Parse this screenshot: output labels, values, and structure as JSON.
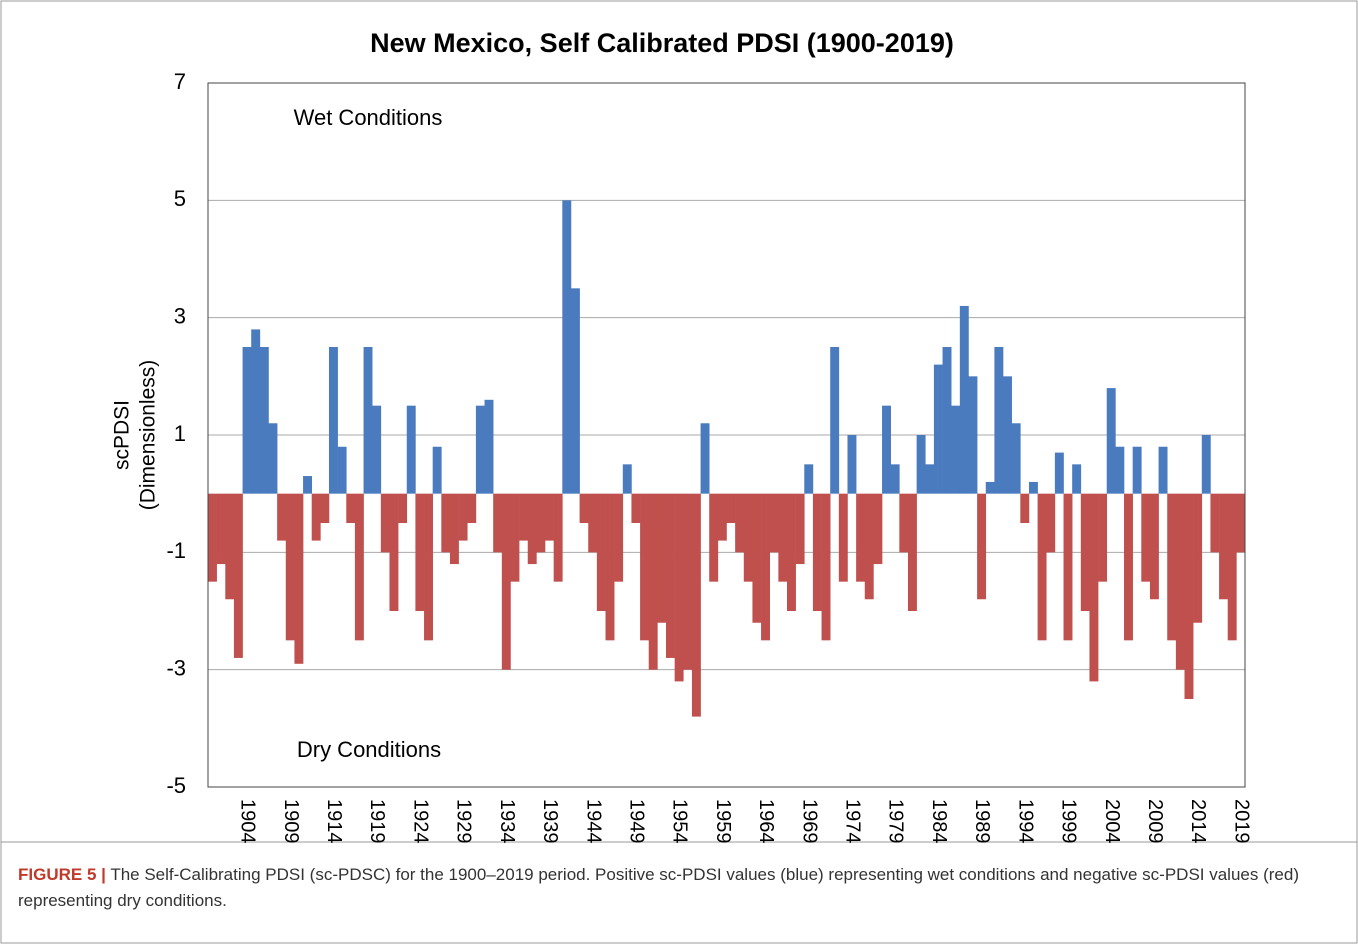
{
  "chart_data": {
    "type": "bar",
    "title": "New Mexico, Self Calibrated PDSI (1900-2019)",
    "ylabel": [
      "scPDSI",
      "(Dimensionless)"
    ],
    "annotations": [
      "Wet Conditions",
      "Dry Conditions"
    ],
    "x": [
      1900,
      1901,
      1902,
      1903,
      1904,
      1905,
      1906,
      1907,
      1908,
      1909,
      1910,
      1911,
      1912,
      1913,
      1914,
      1915,
      1916,
      1917,
      1918,
      1919,
      1920,
      1921,
      1922,
      1923,
      1924,
      1925,
      1926,
      1927,
      1928,
      1929,
      1930,
      1931,
      1932,
      1933,
      1934,
      1935,
      1936,
      1937,
      1938,
      1939,
      1940,
      1941,
      1942,
      1943,
      1944,
      1945,
      1946,
      1947,
      1948,
      1949,
      1950,
      1951,
      1952,
      1953,
      1954,
      1955,
      1956,
      1957,
      1958,
      1959,
      1960,
      1961,
      1962,
      1963,
      1964,
      1965,
      1966,
      1967,
      1968,
      1969,
      1970,
      1971,
      1972,
      1973,
      1974,
      1975,
      1976,
      1977,
      1978,
      1979,
      1980,
      1981,
      1982,
      1983,
      1984,
      1985,
      1986,
      1987,
      1988,
      1989,
      1990,
      1991,
      1992,
      1993,
      1994,
      1995,
      1996,
      1997,
      1998,
      1999,
      2000,
      2001,
      2002,
      2003,
      2004,
      2005,
      2006,
      2007,
      2008,
      2009,
      2010,
      2011,
      2012,
      2013,
      2014,
      2015,
      2016,
      2017,
      2018,
      2019
    ],
    "values": [
      -1.5,
      -1.2,
      -1.8,
      -2.8,
      2.5,
      2.8,
      2.5,
      1.2,
      -0.8,
      -2.5,
      -2.9,
      0.3,
      -0.8,
      -0.5,
      2.5,
      0.8,
      -0.5,
      -2.5,
      2.5,
      1.5,
      -1.0,
      -2.0,
      -0.5,
      1.5,
      -2.0,
      -2.5,
      0.8,
      -1.0,
      -1.2,
      -0.8,
      -0.5,
      1.5,
      1.6,
      -1.0,
      -3.0,
      -1.5,
      -0.8,
      -1.2,
      -1.0,
      -0.8,
      -1.5,
      5.0,
      3.5,
      -0.5,
      -1.0,
      -2.0,
      -2.5,
      -1.5,
      0.5,
      -0.5,
      -2.5,
      -3.0,
      -2.2,
      -2.8,
      -3.2,
      -3.0,
      -3.8,
      1.2,
      -1.5,
      -0.8,
      -0.5,
      -1.0,
      -1.5,
      -2.2,
      -2.5,
      -1.0,
      -1.5,
      -2.0,
      -1.2,
      0.5,
      -2.0,
      -2.5,
      2.5,
      -1.5,
      1.0,
      -1.5,
      -1.8,
      -1.2,
      1.5,
      0.5,
      -1.0,
      -2.0,
      1.0,
      0.5,
      2.2,
      2.5,
      1.5,
      3.2,
      2.0,
      -1.8,
      0.2,
      2.5,
      2.0,
      1.2,
      -0.5,
      0.2,
      -2.5,
      -1.0,
      0.7,
      -2.5,
      0.5,
      -2.0,
      -3.2,
      -1.5,
      1.8,
      0.8,
      -2.5,
      0.8,
      -1.5,
      -1.8,
      0.8,
      -2.5,
      -3.0,
      -3.5,
      -2.2,
      1.0,
      -1.0,
      -1.8,
      -2.5,
      -1.0
    ],
    "color_positive": "#4b7bbf",
    "color_negative": "#c0504d",
    "xlim": [
      1899.5,
      2019.5
    ],
    "xticks": [
      1904,
      1909,
      1914,
      1919,
      1924,
      1929,
      1934,
      1939,
      1944,
      1949,
      1954,
      1959,
      1964,
      1969,
      1974,
      1979,
      1984,
      1989,
      1994,
      1999,
      2004,
      2009,
      2014,
      2019
    ],
    "ylim": [
      -5,
      7
    ],
    "yticks": [
      7,
      5,
      3,
      1,
      -1,
      -3,
      -5
    ],
    "grid": true
  },
  "caption": {
    "label": "FIGURE 5 |",
    "text": "The Self-Calibrating PDSI (sc-PDSC) for the 1900–2019 period. Positive sc-PDSI values (blue) representing wet conditions and negative sc-PDSI values (red) representing dry conditions."
  }
}
